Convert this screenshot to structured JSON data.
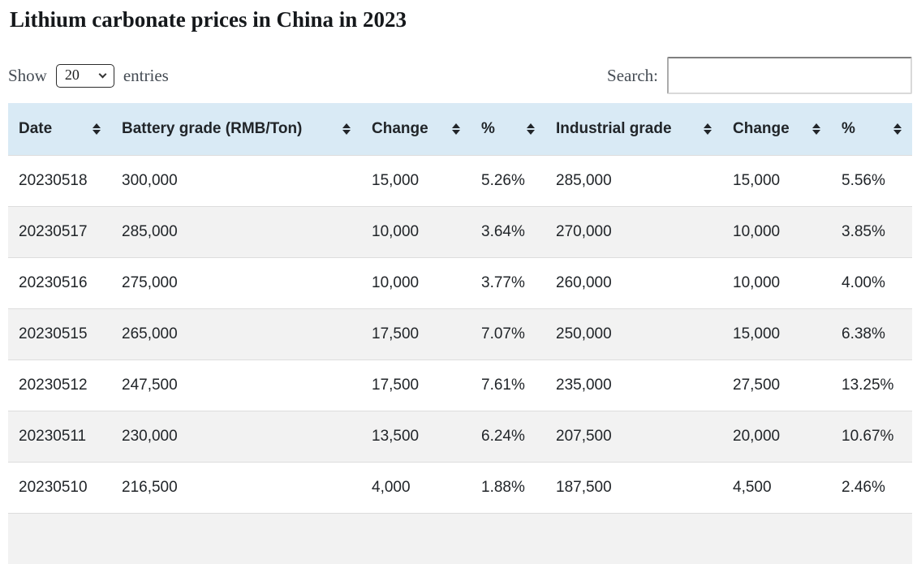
{
  "page": {
    "title": "Lithium carbonate prices in China in 2023"
  },
  "controls": {
    "show_label": "Show",
    "entries_label": "entries",
    "page_size_selected": "20",
    "search_label": "Search:",
    "search_value": ""
  },
  "table": {
    "columns": [
      "Date",
      "Battery grade (RMB/Ton)",
      "Change",
      "%",
      "Industrial grade",
      "Change",
      "%"
    ],
    "rows": [
      [
        "20230518",
        "300,000",
        "15,000",
        "5.26%",
        "285,000",
        "15,000",
        "5.56%"
      ],
      [
        "20230517",
        "285,000",
        "10,000",
        "3.64%",
        "270,000",
        "10,000",
        "3.85%"
      ],
      [
        "20230516",
        "275,000",
        "10,000",
        "3.77%",
        "260,000",
        "10,000",
        "4.00%"
      ],
      [
        "20230515",
        "265,000",
        "17,500",
        "7.07%",
        "250,000",
        "15,000",
        "6.38%"
      ],
      [
        "20230512",
        "247,500",
        "17,500",
        "7.61%",
        "235,000",
        "27,500",
        "13.25%"
      ],
      [
        "20230511",
        "230,000",
        "13,500",
        "6.24%",
        "207,500",
        "20,000",
        "10.67%"
      ],
      [
        "20230510",
        "216,500",
        "4,000",
        "1.88%",
        "187,500",
        "4,500",
        "2.46%"
      ]
    ]
  },
  "icons": {
    "sort": "up-down-triangles",
    "select_chevron": "chevron-down"
  },
  "colors": {
    "header_bg": "#d9eaf5",
    "row_alt_bg": "#f2f2f2",
    "row_divider": "#dddddd",
    "table_text": "#212529",
    "control_text": "#454c54"
  }
}
